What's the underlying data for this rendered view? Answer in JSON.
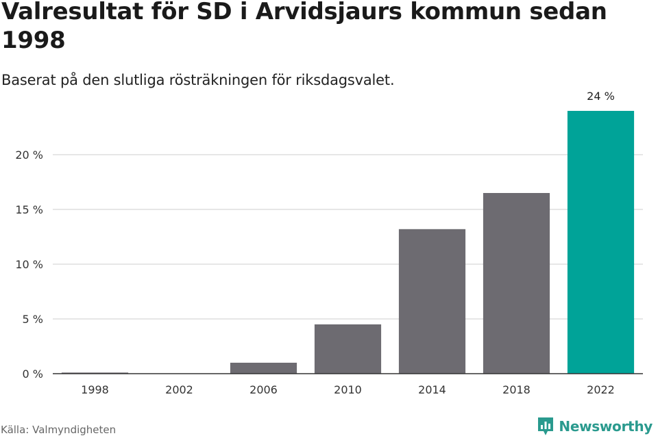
{
  "header": {
    "title": "Valresultat för SD i Arvidsjaurs kommun sedan 1998",
    "subtitle": "Baserat på den slutliga rösträkningen för riksdagsvalet."
  },
  "footer": {
    "source": "Källa: Valmyndigheten",
    "brand": "Newsworthy"
  },
  "colors": {
    "bar": "#6d6b71",
    "highlight": "#00a398",
    "grid": "#dddddd",
    "axis": "#333333",
    "brand": "#2a9a8e"
  },
  "chart_data": {
    "type": "bar",
    "title": "Valresultat för SD i Arvidsjaurs kommun sedan 1998",
    "subtitle": "Baserat på den slutliga rösträkningen för riksdagsvalet.",
    "categories": [
      "1998",
      "2002",
      "2006",
      "2010",
      "2014",
      "2018",
      "2022"
    ],
    "values": [
      0.1,
      0.0,
      1.0,
      4.5,
      13.2,
      16.5,
      24.0
    ],
    "highlight_index": 6,
    "data_labels": [
      "",
      "",
      "",
      "",
      "",
      "",
      "24 %"
    ],
    "ylim": [
      0,
      24
    ],
    "yticks": [
      0,
      5,
      10,
      15,
      20
    ],
    "ytick_labels": [
      "0 %",
      "5 %",
      "10 %",
      "15 %",
      "20 %"
    ],
    "xlabel": "",
    "ylabel": "",
    "grid": true,
    "legend": "none"
  }
}
